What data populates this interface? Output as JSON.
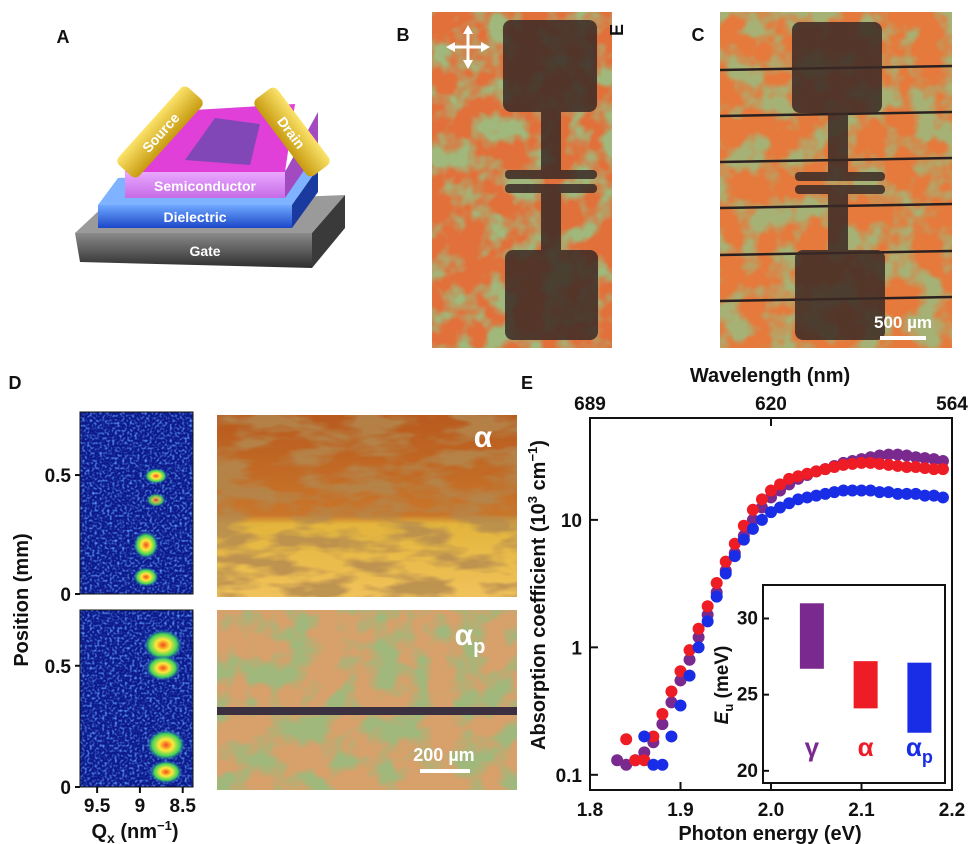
{
  "panels": {
    "A": {
      "letter": "A",
      "labels": {
        "source": "Source",
        "drain": "Drain",
        "semiconductor": "Semiconductor",
        "dielectric": "Dielectric",
        "gate": "Gate"
      }
    },
    "B": {
      "letter": "B",
      "mark": "E"
    },
    "C": {
      "letter": "C",
      "scale_bar": "500 µm"
    },
    "D": {
      "letter": "D",
      "alpha": "α",
      "alpha_p": {
        "base": "α",
        "sub": "p"
      },
      "scale_bar": "200 µm"
    },
    "E": {
      "letter": "E"
    }
  },
  "chart_data": [
    {
      "type": "heatmap",
      "ylabel": "Position (mm)",
      "xlabel": {
        "base": "Q",
        "sub": "x",
        "unit": " (nm",
        "exp": "−1",
        "close": ")"
      },
      "xlim": [
        9.7,
        8.38
      ],
      "xticks": [
        9.5,
        9,
        8.5
      ],
      "subplots": [
        {
          "ylim": [
            0,
            0.765
          ],
          "yticks": [
            0,
            0.5
          ]
        },
        {
          "ylim": [
            0,
            0.73
          ],
          "yticks": [
            0,
            0.5
          ]
        }
      ]
    },
    {
      "type": "scatter",
      "xlabel": "Photon energy (eV)",
      "x2label": "Wavelength (nm)",
      "ylabel": {
        "base": "Absorption coefficient (10",
        "exp": "3",
        "unit": " cm",
        "exp2": "−1",
        "close": ")"
      },
      "xlim": [
        1.8,
        2.2
      ],
      "xticks": [
        1.8,
        1.9,
        {
          "value": 2,
          "label": "2.0"
        },
        2.1,
        2.2
      ],
      "x2ticks": [
        {
          "value": 1.8,
          "label": "689"
        },
        {
          "value": 2.0,
          "label": "620"
        },
        {
          "value": 2.2,
          "label": "564"
        }
      ],
      "yscale": "log",
      "ylim": [
        0.076,
        63
      ],
      "yticks": [
        0.1,
        1,
        10
      ],
      "x": [
        1.83,
        1.84,
        1.85,
        1.86,
        1.87,
        1.88,
        1.89,
        1.9,
        1.91,
        1.92,
        1.93,
        1.94,
        1.95,
        1.96,
        1.97,
        1.98,
        1.99,
        2.0,
        2.01,
        2.02,
        2.03,
        2.04,
        2.05,
        2.06,
        2.07,
        2.08,
        2.09,
        2.1,
        2.11,
        2.12,
        2.13,
        2.14,
        2.15,
        2.16,
        2.17,
        2.18,
        2.19
      ],
      "series": [
        {
          "color": "#7a2a8f",
          "values": [
            0.13,
            0.12,
            0.13,
            0.15,
            0.18,
            0.25,
            0.37,
            0.55,
            0.8,
            1.2,
            1.8,
            2.7,
            4.0,
            5.5,
            7.5,
            10,
            12.5,
            15,
            17,
            19,
            21,
            22.5,
            24,
            25,
            26.5,
            28,
            29,
            30,
            31,
            32,
            32.5,
            32.5,
            32,
            31,
            30.5,
            30,
            29
          ]
        },
        {
          "color": "#ee1c25",
          "values": [
            null,
            0.19,
            0.13,
            0.13,
            0.2,
            0.3,
            0.45,
            0.65,
            0.95,
            1.4,
            2.1,
            3.2,
            4.7,
            6.5,
            9,
            12,
            14.5,
            17,
            19,
            21,
            22,
            23,
            24,
            25,
            26,
            27,
            27.5,
            28,
            28,
            27.5,
            27,
            26.5,
            26,
            26,
            25.5,
            25,
            25
          ]
        },
        {
          "color": "#1a2de6",
          "values": [
            null,
            null,
            null,
            0.2,
            0.12,
            0.12,
            0.2,
            0.35,
            0.6,
            1.0,
            1.6,
            2.5,
            3.8,
            5.2,
            7,
            8.5,
            10,
            11.5,
            12.5,
            13.5,
            14.5,
            15,
            15.5,
            16,
            16.5,
            17,
            17,
            17,
            17,
            16.5,
            16.5,
            16,
            16,
            16,
            15.5,
            15.5,
            15
          ]
        }
      ]
    },
    {
      "type": "bar",
      "ylabel": {
        "base": "E",
        "sub": "u",
        "unit": " (meV)"
      },
      "categories": [
        "γ",
        "α",
        "α"
      ],
      "category_subscripts": [
        null,
        null,
        "p"
      ],
      "colors": [
        "#7a2a8f",
        "#ee1c25",
        "#1a2de6"
      ],
      "low": [
        26.7,
        24.1,
        22.5
      ],
      "high": [
        31.0,
        27.2,
        27.1
      ],
      "ylim": [
        19.2,
        32.2
      ],
      "yticks": [
        20,
        25,
        30
      ]
    }
  ]
}
